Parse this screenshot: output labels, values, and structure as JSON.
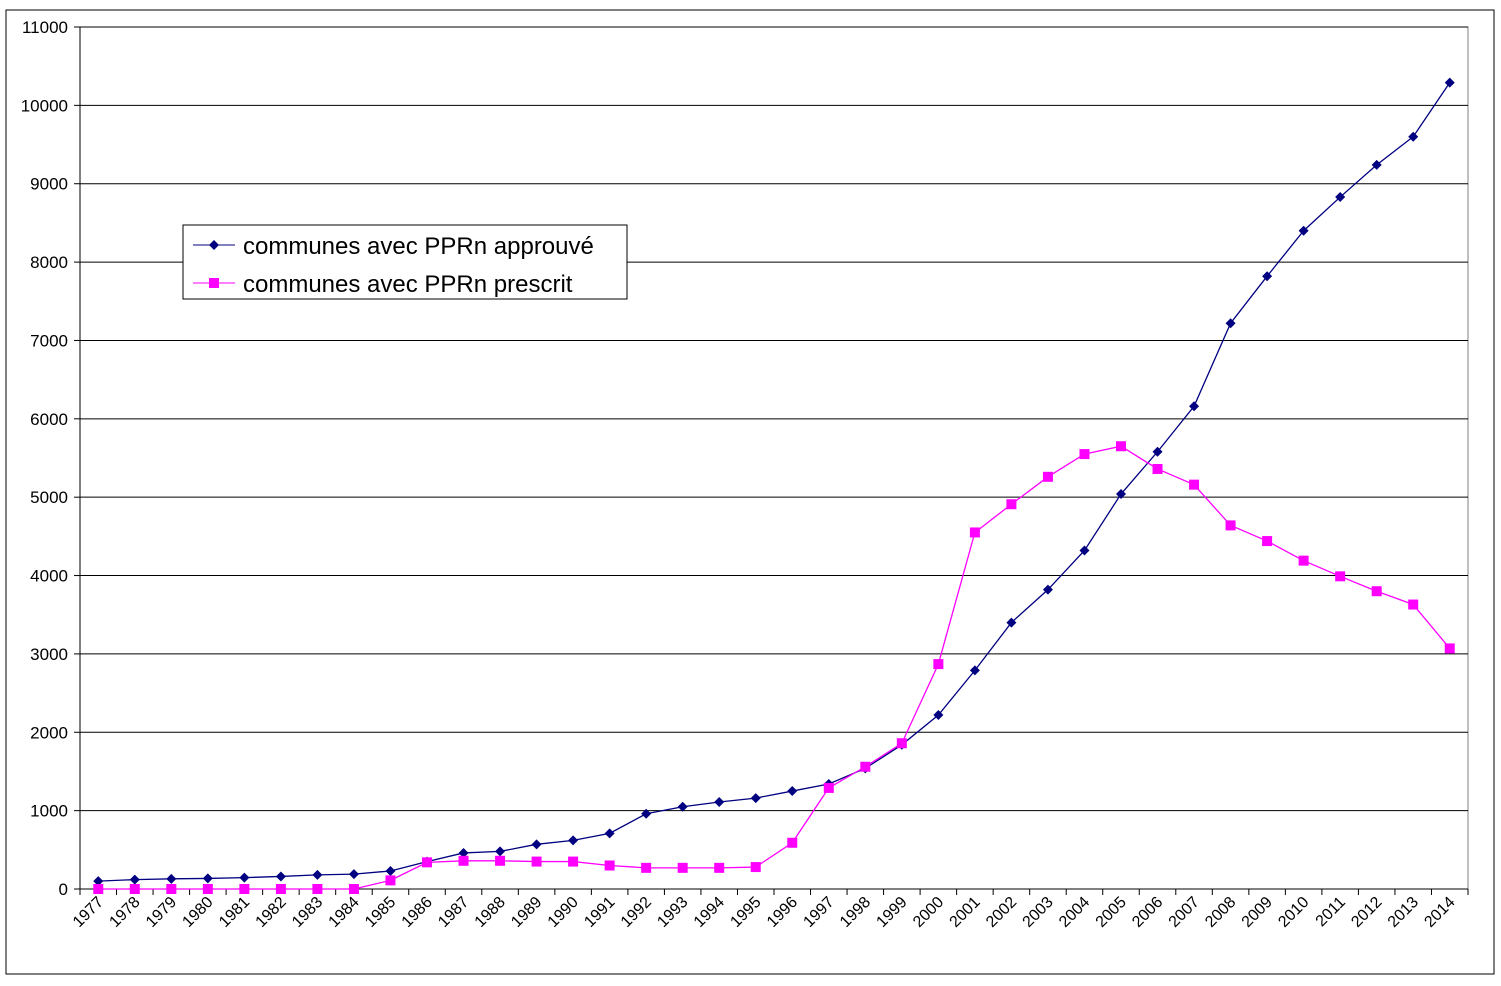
{
  "chart_data": {
    "type": "line",
    "title": "",
    "xlabel": "",
    "ylabel": "",
    "ylim": [
      0,
      11000
    ],
    "yticks": [
      0,
      1000,
      2000,
      3000,
      4000,
      5000,
      6000,
      7000,
      8000,
      9000,
      10000,
      11000
    ],
    "grid": "horizontal",
    "legend_position": "upper-left",
    "categories": [
      "1977",
      "1978",
      "1979",
      "1980",
      "1981",
      "1982",
      "1983",
      "1984",
      "1985",
      "1986",
      "1987",
      "1988",
      "1989",
      "1990",
      "1991",
      "1992",
      "1993",
      "1994",
      "1995",
      "1996",
      "1997",
      "1998",
      "1999",
      "2000",
      "2001",
      "2002",
      "2003",
      "2004",
      "2005",
      "2006",
      "2007",
      "2008",
      "2009",
      "2010",
      "2011",
      "2012",
      "2013",
      "2014"
    ],
    "series": [
      {
        "name": "communes avec PPRn approuvé",
        "color": "#000080",
        "marker": "diamond",
        "values": [
          100,
          120,
          130,
          135,
          145,
          160,
          180,
          190,
          230,
          350,
          460,
          480,
          570,
          620,
          710,
          960,
          1050,
          1110,
          1160,
          1250,
          1340,
          1540,
          1840,
          2220,
          2790,
          3400,
          3820,
          4320,
          5040,
          5580,
          6160,
          7220,
          7820,
          8400,
          8830,
          9240,
          9600,
          10290
        ]
      },
      {
        "name": "communes avec PPRn prescrit",
        "color": "#FF00FF",
        "marker": "square",
        "values": [
          0,
          0,
          0,
          0,
          0,
          0,
          0,
          0,
          110,
          340,
          360,
          360,
          350,
          350,
          300,
          270,
          270,
          270,
          280,
          590,
          1290,
          1560,
          1860,
          2870,
          4550,
          4910,
          5260,
          5550,
          5650,
          5360,
          5160,
          4640,
          4440,
          4190,
          3990,
          3800,
          3630,
          3070
        ]
      }
    ]
  }
}
